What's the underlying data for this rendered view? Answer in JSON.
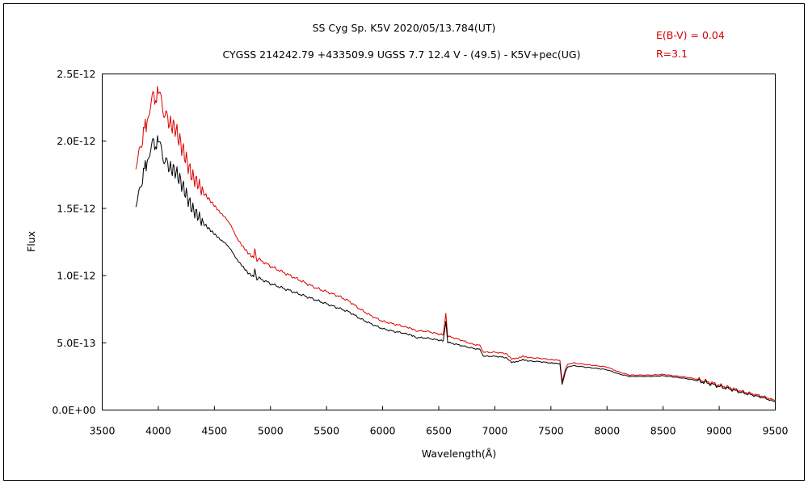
{
  "chart_data": {
    "type": "line",
    "title": "SS Cyg    Sp. K5V    2020/05/13.784(UT)",
    "subtitle": "CYGSS 214242.79 +433509.9 UGSS 7.7 12.4 V - (49.5) - K5V+pec(UG)",
    "annotations": [
      "E(B-V) = 0.04",
      "R=3.1"
    ],
    "xlabel": "Wavelength(Å)",
    "ylabel": "Flux",
    "xlim": [
      3500,
      9500
    ],
    "ylim": [
      0,
      2.5e-12
    ],
    "x_ticks": [
      "3500",
      "4000",
      "4500",
      "5000",
      "5500",
      "6000",
      "6500",
      "7000",
      "7500",
      "8000",
      "8500",
      "9000",
      "9500"
    ],
    "y_ticks": [
      "0.0E+00",
      "5.0E-13",
      "1.0E-12",
      "1.5E-12",
      "2.0E-12",
      "2.5E-12"
    ],
    "grid": false,
    "colors": {
      "corrected": "#dd0000",
      "observed": "#000000",
      "annotation": "#d40000"
    },
    "series": [
      {
        "key": "corrected",
        "x": [
          3800,
          3830,
          3860,
          3900,
          3930,
          3960,
          4000,
          4030,
          4060,
          4100,
          4150,
          4200,
          4250,
          4300,
          4350,
          4400,
          4450,
          4500,
          4550,
          4600,
          4650,
          4700,
          4750,
          4800,
          4850,
          4860,
          4880,
          4900,
          5000,
          5100,
          5200,
          5300,
          5400,
          5500,
          5600,
          5700,
          5800,
          5900,
          6000,
          6100,
          6200,
          6280,
          6300,
          6400,
          6500,
          6540,
          6563,
          6580,
          6600,
          6700,
          6800,
          6870,
          6900,
          7000,
          7100,
          7150,
          7200,
          7250,
          7300,
          7400,
          7500,
          7580,
          7600,
          7630,
          7650,
          7700,
          7800,
          7900,
          8000,
          8100,
          8200,
          8300,
          8400,
          8500,
          8600,
          8700,
          8800,
          8900,
          9000,
          9100,
          9200,
          9300,
          9400,
          9500
        ],
        "y": [
          1.78e-12,
          1.93e-12,
          2.05e-12,
          2.15e-12,
          2.26e-12,
          2.3e-12,
          2.35e-12,
          2.32e-12,
          2.22e-12,
          2.13e-12,
          2.1e-12,
          1.98e-12,
          1.86e-12,
          1.74e-12,
          1.69e-12,
          1.62e-12,
          1.57e-12,
          1.52e-12,
          1.47e-12,
          1.43e-12,
          1.37e-12,
          1.28e-12,
          1.22e-12,
          1.17e-12,
          1.13e-12,
          1.2e-12,
          1.11e-12,
          1.12e-12,
          1.07e-12,
          1.03e-12,
          9.9e-13,
          9.5e-13,
          9.1e-13,
          8.8e-13,
          8.5e-13,
          8.1e-13,
          7.5e-13,
          7e-13,
          6.6e-13,
          6.4e-13,
          6.2e-13,
          6e-13,
          5.9e-13,
          5.85e-13,
          5.65e-13,
          5.6e-13,
          7.2e-13,
          5.5e-13,
          5.45e-13,
          5.2e-13,
          4.9e-13,
          4.8e-13,
          4.3e-13,
          4.3e-13,
          4.2e-13,
          3.8e-13,
          3.85e-13,
          4e-13,
          3.9e-13,
          3.85e-13,
          3.75e-13,
          3.7e-13,
          2.1e-13,
          3.1e-13,
          3.4e-13,
          3.5e-13,
          3.4e-13,
          3.3e-13,
          3.2e-13,
          2.85e-13,
          2.6e-13,
          2.6e-13,
          2.6e-13,
          2.65e-13,
          2.55e-13,
          2.45e-13,
          2.3e-13,
          2.1e-13,
          1.85e-13,
          1.65e-13,
          1.4e-13,
          1.2e-13,
          1e-13,
          7e-14
        ]
      },
      {
        "key": "observed",
        "x": [
          3800,
          3830,
          3860,
          3900,
          3930,
          3960,
          4000,
          4030,
          4060,
          4100,
          4150,
          4200,
          4250,
          4300,
          4350,
          4400,
          4450,
          4500,
          4550,
          4600,
          4650,
          4700,
          4750,
          4800,
          4850,
          4860,
          4880,
          4900,
          5000,
          5100,
          5200,
          5300,
          5400,
          5500,
          5600,
          5700,
          5800,
          5900,
          6000,
          6100,
          6200,
          6280,
          6300,
          6400,
          6500,
          6540,
          6563,
          6580,
          6600,
          6700,
          6800,
          6870,
          6900,
          7000,
          7100,
          7150,
          7200,
          7250,
          7300,
          7400,
          7500,
          7580,
          7600,
          7630,
          7650,
          7700,
          7800,
          7900,
          8000,
          8100,
          8200,
          8300,
          8400,
          8500,
          8600,
          8700,
          8800,
          8900,
          9000,
          9100,
          9200,
          9300,
          9400,
          9500
        ],
        "y": [
          1.5e-12,
          1.63e-12,
          1.75e-12,
          1.85e-12,
          1.93e-12,
          1.96e-12,
          1.99e-12,
          1.95e-12,
          1.87e-12,
          1.8e-12,
          1.78e-12,
          1.7e-12,
          1.6e-12,
          1.5e-12,
          1.45e-12,
          1.39e-12,
          1.35e-12,
          1.31e-12,
          1.27e-12,
          1.24e-12,
          1.19e-12,
          1.12e-12,
          1.07e-12,
          1.02e-12,
          9.9e-13,
          1.05e-12,
          9.7e-13,
          9.8e-13,
          9.4e-13,
          9.1e-13,
          8.8e-13,
          8.5e-13,
          8.2e-13,
          7.9e-13,
          7.6e-13,
          7.3e-13,
          6.8e-13,
          6.4e-13,
          6.05e-13,
          5.85e-13,
          5.7e-13,
          5.5e-13,
          5.4e-13,
          5.35e-13,
          5.2e-13,
          5.15e-13,
          6.6e-13,
          5.05e-13,
          5e-13,
          4.8e-13,
          4.6e-13,
          4.5e-13,
          4e-13,
          4e-13,
          3.9e-13,
          3.55e-13,
          3.6e-13,
          3.75e-13,
          3.65e-13,
          3.6e-13,
          3.5e-13,
          3.45e-13,
          1.9e-13,
          2.9e-13,
          3.2e-13,
          3.3e-13,
          3.2e-13,
          3.1e-13,
          3e-13,
          2.7e-13,
          2.5e-13,
          2.5e-13,
          2.5e-13,
          2.55e-13,
          2.45e-13,
          2.35e-13,
          2.2e-13,
          2e-13,
          1.75e-13,
          1.55e-13,
          1.3e-13,
          1.1e-13,
          9e-14,
          6e-14
        ]
      }
    ]
  }
}
